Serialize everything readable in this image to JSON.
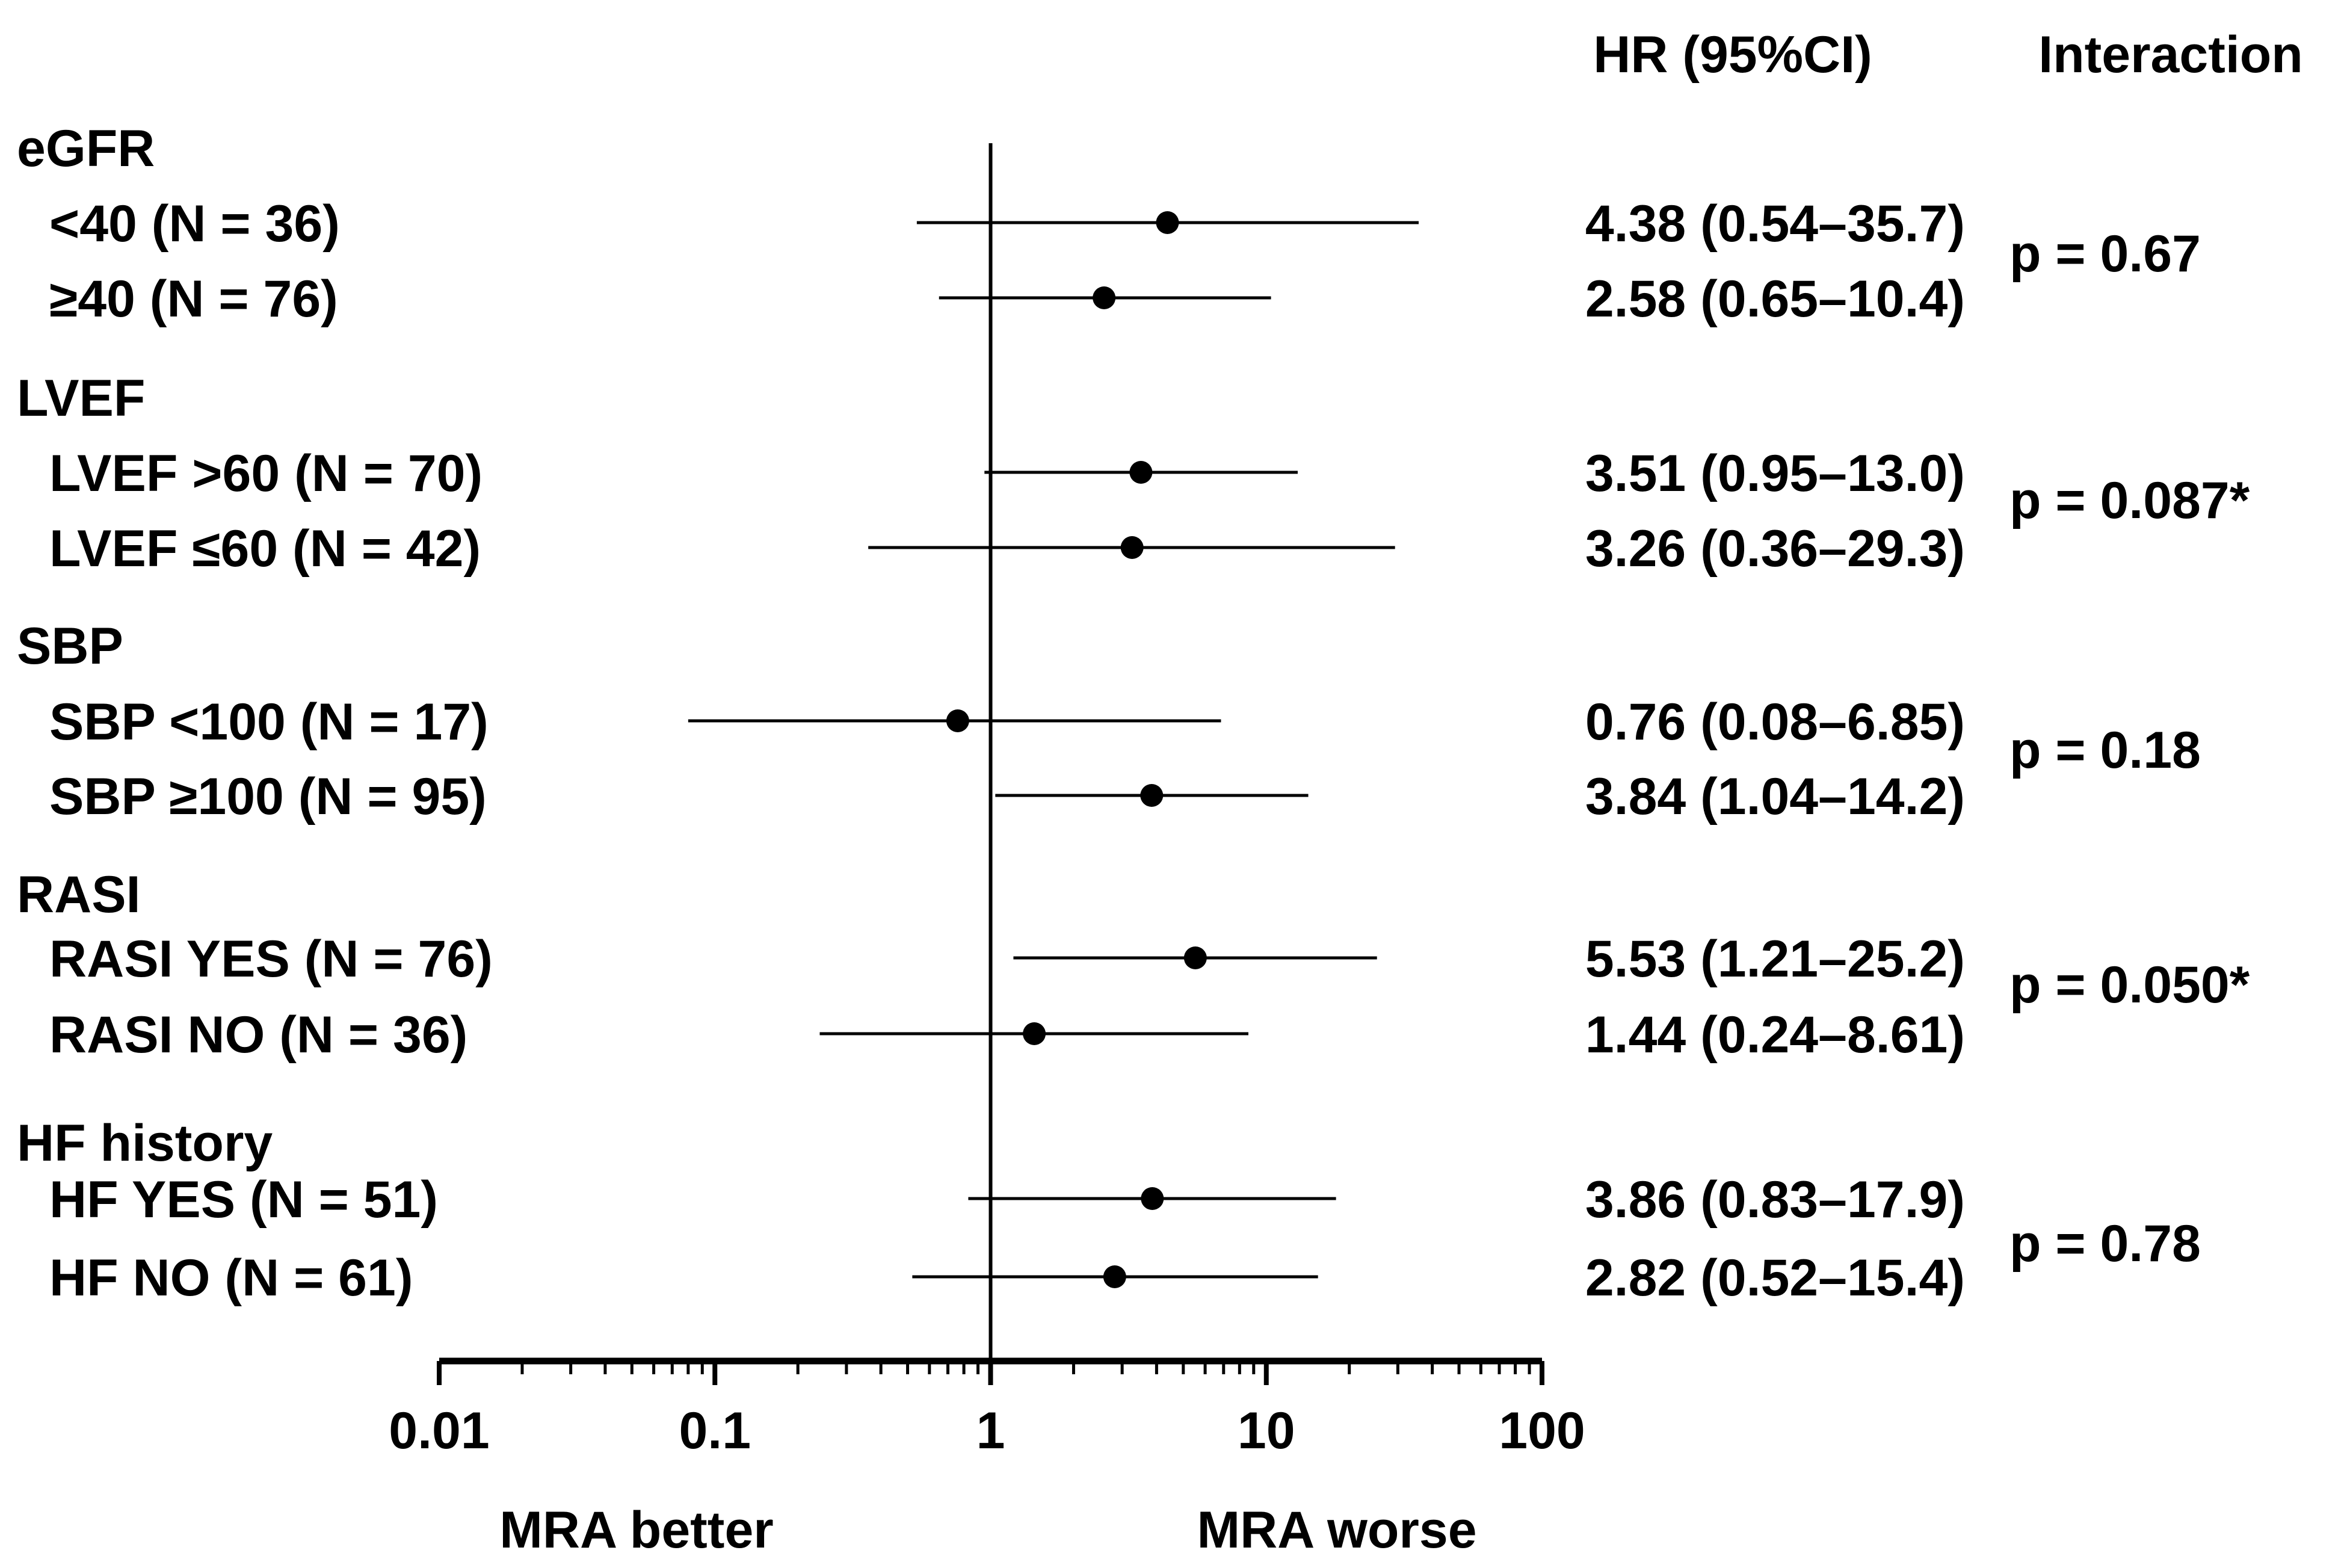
{
  "chart_data": {
    "type": "forest",
    "headers": {
      "hr": "HR (95%CI)",
      "interaction": "Interaction"
    },
    "x_axis": {
      "scale": "log",
      "range": [
        0.01,
        100
      ],
      "reference_line": 1,
      "ticks": [
        {
          "value": 0.01,
          "label": "0.01"
        },
        {
          "value": 0.1,
          "label": "0.1"
        },
        {
          "value": 1,
          "label": "1"
        },
        {
          "value": 10,
          "label": "10"
        },
        {
          "value": 100,
          "label": "100"
        }
      ],
      "left_label": "MRA better",
      "right_label": "MRA worse"
    },
    "groups": [
      {
        "name": "eGFR",
        "interaction": "p = 0.67",
        "rows": [
          {
            "label": "<40 (N = 36)",
            "hr": 4.38,
            "lo": 0.54,
            "hi": 35.7,
            "text": "4.38 (0.54–35.7)"
          },
          {
            "label": "≥40 (N = 76)",
            "hr": 2.58,
            "lo": 0.65,
            "hi": 10.4,
            "text": "2.58 (0.65–10.4)"
          }
        ]
      },
      {
        "name": "LVEF",
        "interaction": "p = 0.087*",
        "rows": [
          {
            "label": "LVEF >60 (N = 70)",
            "hr": 3.51,
            "lo": 0.95,
            "hi": 13.0,
            "text": "3.51 (0.95–13.0)"
          },
          {
            "label": "LVEF ≤60 (N = 42)",
            "hr": 3.26,
            "lo": 0.36,
            "hi": 29.3,
            "text": "3.26 (0.36–29.3)"
          }
        ]
      },
      {
        "name": "SBP",
        "interaction": "p = 0.18",
        "rows": [
          {
            "label": "SBP <100 (N = 17)",
            "hr": 0.76,
            "lo": 0.08,
            "hi": 6.85,
            "text": "0.76 (0.08–6.85)"
          },
          {
            "label": "SBP ≥100 (N = 95)",
            "hr": 3.84,
            "lo": 1.04,
            "hi": 14.2,
            "text": "3.84 (1.04–14.2)"
          }
        ]
      },
      {
        "name": "RASI",
        "interaction": "p = 0.050*",
        "rows": [
          {
            "label": "RASI YES (N = 76)",
            "hr": 5.53,
            "lo": 1.21,
            "hi": 25.2,
            "text": "5.53 (1.21–25.2)"
          },
          {
            "label": "RASI NO (N = 36)",
            "hr": 1.44,
            "lo": 0.24,
            "hi": 8.61,
            "text": "1.44 (0.24–8.61)"
          }
        ]
      },
      {
        "name": "HF history",
        "interaction": "p = 0.78",
        "rows": [
          {
            "label": "HF YES (N = 51)",
            "hr": 3.86,
            "lo": 0.83,
            "hi": 17.9,
            "text": "3.86 (0.83–17.9)"
          },
          {
            "label": "HF NO (N = 61)",
            "hr": 2.82,
            "lo": 0.52,
            "hi": 15.4,
            "text": "2.82 (0.52–15.4)"
          }
        ]
      }
    ]
  }
}
